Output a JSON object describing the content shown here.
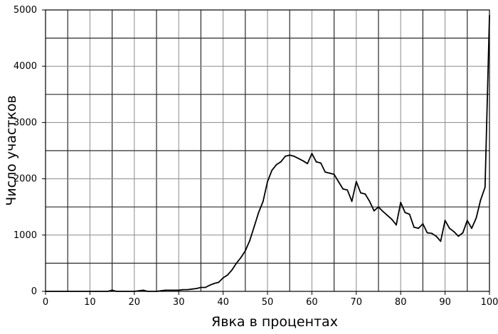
{
  "chart_data": {
    "type": "line",
    "xlabel": "Явка в процентах",
    "ylabel": "Число участков",
    "xlim": [
      0,
      100
    ],
    "ylim": [
      0,
      5000
    ],
    "x_ticks": [
      "0",
      "10",
      "20",
      "30",
      "40",
      "50",
      "60",
      "70",
      "80",
      "90",
      "100"
    ],
    "y_ticks": [
      "0",
      "1000",
      "2000",
      "3000",
      "4000",
      "5000"
    ],
    "grid": true,
    "series": [
      {
        "color": "#000000",
        "x": [
          0,
          5,
          10,
          14,
          15,
          16,
          20,
          22,
          23,
          25,
          26,
          27,
          28,
          29,
          30,
          31,
          32,
          33,
          34,
          35,
          36,
          37,
          38,
          39,
          40,
          41,
          42,
          43,
          44,
          45,
          46,
          47,
          48,
          49,
          50,
          51,
          52,
          53,
          54,
          55,
          56,
          57,
          58,
          59,
          60,
          61,
          62,
          63,
          64,
          65,
          66,
          67,
          68,
          69,
          70,
          71,
          72,
          73,
          74,
          75,
          76,
          77,
          78,
          79,
          80,
          81,
          82,
          83,
          84,
          85,
          86,
          87,
          88,
          89,
          90,
          91,
          92,
          93,
          94,
          95,
          96,
          97,
          98,
          99,
          100
        ],
        "y": [
          0,
          0,
          0,
          0,
          20,
          0,
          0,
          20,
          0,
          0,
          10,
          20,
          20,
          20,
          20,
          30,
          30,
          40,
          50,
          70,
          70,
          110,
          140,
          160,
          240,
          290,
          380,
          500,
          600,
          720,
          900,
          1150,
          1400,
          1600,
          1950,
          2150,
          2250,
          2300,
          2400,
          2420,
          2400,
          2360,
          2320,
          2270,
          2450,
          2300,
          2280,
          2120,
          2100,
          2080,
          1950,
          1820,
          1800,
          1600,
          1950,
          1750,
          1730,
          1600,
          1430,
          1500,
          1420,
          1350,
          1280,
          1180,
          1580,
          1400,
          1370,
          1140,
          1120,
          1200,
          1040,
          1030,
          980,
          890,
          1260,
          1120,
          1060,
          980,
          1040,
          1260,
          1120,
          1300,
          1620,
          1850,
          4900
        ]
      }
    ]
  }
}
